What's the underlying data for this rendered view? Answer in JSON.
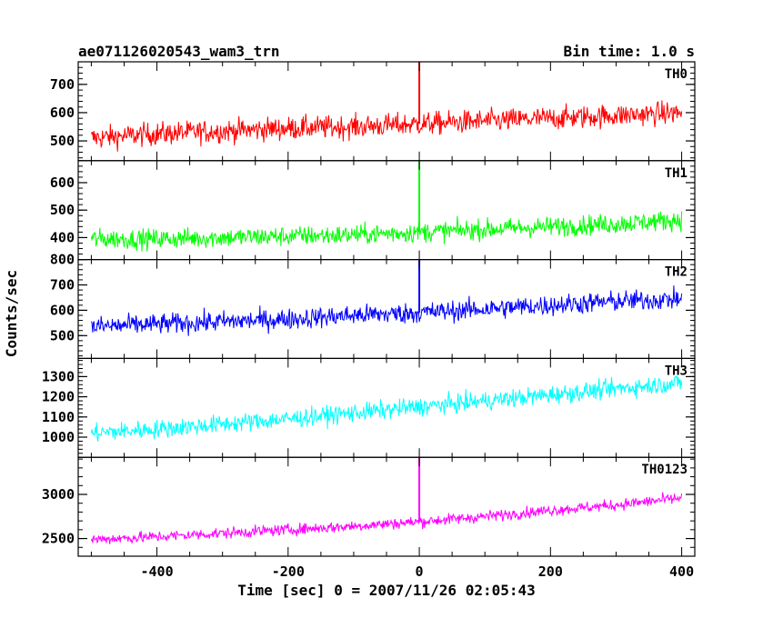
{
  "header": {
    "title": "ae071126020543_wam3_trn",
    "bin_time": "Bin time: 1.0 s"
  },
  "chart_data": {
    "type": "line",
    "title": "ae071126020543_wam3_trn",
    "xlabel": "Time [sec] 0 = 2007/11/26 02:05:43",
    "ylabel": "Counts/sec",
    "xlim": [
      -520,
      420
    ],
    "x_ticks": [
      -400,
      -200,
      0,
      200,
      400
    ],
    "x_sample": [
      -500,
      -400,
      -300,
      -200,
      -100,
      0,
      100,
      200,
      300,
      400
    ],
    "series": [
      {
        "name": "TH0",
        "color": "#ff0000",
        "ylim": [
          430,
          780
        ],
        "y_ticks": [
          500,
          600,
          700
        ],
        "values": [
          510,
          525,
          535,
          545,
          550,
          560,
          570,
          580,
          590,
          600
        ],
        "noise": 45,
        "spike": {
          "x": 0,
          "value": 780
        }
      },
      {
        "name": "TH1",
        "color": "#00ff00",
        "ylim": [
          320,
          680
        ],
        "y_ticks": [
          400,
          500,
          600
        ],
        "values": [
          395,
          395,
          400,
          405,
          410,
          420,
          430,
          440,
          450,
          465
        ],
        "noise": 40,
        "spike": {
          "x": 0,
          "value": 680
        }
      },
      {
        "name": "TH2",
        "color": "#0000ff",
        "ylim": [
          410,
          800
        ],
        "y_ticks": [
          500,
          600,
          700,
          800
        ],
        "values": [
          535,
          545,
          555,
          565,
          580,
          590,
          605,
          620,
          635,
          645
        ],
        "noise": 45,
        "spike": {
          "x": 0,
          "value": 800
        }
      },
      {
        "name": "TH3",
        "color": "#00ffff",
        "ylim": [
          900,
          1390
        ],
        "y_ticks": [
          1000,
          1100,
          1200,
          1300
        ],
        "values": [
          1020,
          1040,
          1065,
          1090,
          1120,
          1150,
          1180,
          1210,
          1240,
          1270
        ],
        "noise": 50,
        "spike": null
      },
      {
        "name": "TH0123",
        "color": "#ff00ff",
        "ylim": [
          2300,
          3420
        ],
        "y_ticks": [
          2500,
          3000
        ],
        "values": [
          2490,
          2520,
          2560,
          2600,
          2640,
          2690,
          2750,
          2820,
          2880,
          2960
        ],
        "noise": 70,
        "spike": {
          "x": 0,
          "value": 3420
        }
      }
    ]
  }
}
